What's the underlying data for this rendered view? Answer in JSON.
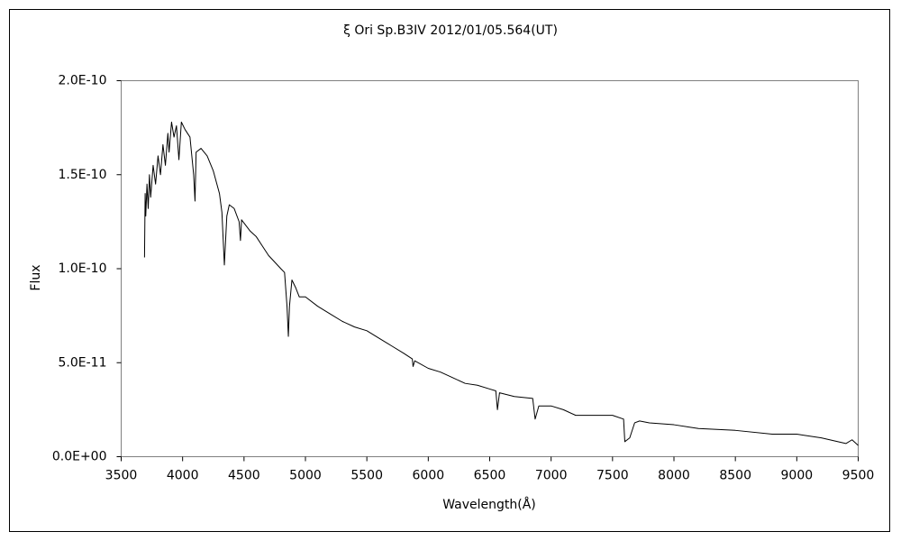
{
  "chart_data": {
    "type": "line",
    "title": "ξ Ori   Sp.B3IV   2012/01/05.564(UT)",
    "x_label": "Wavelength(Å)",
    "y_label": "Flux",
    "color": "#000000",
    "grid": false,
    "xlim": [
      3500,
      9500
    ],
    "xticks": [
      3500,
      4000,
      4500,
      5000,
      5500,
      6000,
      6500,
      7000,
      7500,
      8000,
      8500,
      9000,
      9500
    ],
    "ylim": [
      0,
      2e-10
    ],
    "yticks": [
      {
        "value": 0,
        "label": "0.0E+00"
      },
      {
        "value": 5e-11,
        "label": "5.0E-11"
      },
      {
        "value": 1e-10,
        "label": "1.0E-10"
      },
      {
        "value": 1.5e-10,
        "label": "1.5E-10"
      },
      {
        "value": 2e-10,
        "label": "2.0E-10"
      }
    ],
    "x": [
      3690,
      3695,
      3700,
      3710,
      3720,
      3730,
      3740,
      3760,
      3780,
      3800,
      3820,
      3840,
      3860,
      3880,
      3890,
      3910,
      3930,
      3950,
      3970,
      3990,
      4020,
      4060,
      4090,
      4101,
      4110,
      4150,
      4200,
      4250,
      4300,
      4320,
      4340,
      4360,
      4380,
      4420,
      4460,
      4471,
      4480,
      4550,
      4600,
      4650,
      4700,
      4800,
      4830,
      4850,
      4861,
      4870,
      4890,
      4920,
      4950,
      5000,
      5100,
      5200,
      5300,
      5400,
      5500,
      5600,
      5700,
      5800,
      5870,
      5876,
      5890,
      6000,
      6100,
      6200,
      6300,
      6400,
      6500,
      6550,
      6563,
      6580,
      6700,
      6850,
      6870,
      6900,
      7000,
      7100,
      7200,
      7300,
      7500,
      7590,
      7600,
      7640,
      7680,
      7720,
      7800,
      8000,
      8200,
      8500,
      8800,
      9000,
      9200,
      9400,
      9450,
      9500
    ],
    "values": [
      1.06e-10,
      1.4e-10,
      1.28e-10,
      1.45e-10,
      1.32e-10,
      1.5e-10,
      1.38e-10,
      1.55e-10,
      1.45e-10,
      1.6e-10,
      1.5e-10,
      1.66e-10,
      1.55e-10,
      1.72e-10,
      1.62e-10,
      1.78e-10,
      1.7e-10,
      1.76e-10,
      1.58e-10,
      1.78e-10,
      1.74e-10,
      1.7e-10,
      1.5e-10,
      1.36e-10,
      1.62e-10,
      1.64e-10,
      1.6e-10,
      1.52e-10,
      1.4e-10,
      1.3e-10,
      1.02e-10,
      1.28e-10,
      1.34e-10,
      1.32e-10,
      1.25e-10,
      1.15e-10,
      1.26e-10,
      1.2e-10,
      1.17e-10,
      1.12e-10,
      1.07e-10,
      1e-10,
      9.8e-11,
      8e-11,
      6.4e-11,
      8e-11,
      9.4e-11,
      9e-11,
      8.5e-11,
      8.5e-11,
      8e-11,
      7.6e-11,
      7.2e-11,
      6.9e-11,
      6.7e-11,
      6.3e-11,
      5.9e-11,
      5.5e-11,
      5.2e-11,
      4.8e-11,
      5.1e-11,
      4.7e-11,
      4.5e-11,
      4.2e-11,
      3.9e-11,
      3.8e-11,
      3.6e-11,
      3.5e-11,
      2.5e-11,
      3.4e-11,
      3.2e-11,
      3.1e-11,
      2e-11,
      2.7e-11,
      2.7e-11,
      2.5e-11,
      2.2e-11,
      2.2e-11,
      2.2e-11,
      2e-11,
      8e-12,
      1e-11,
      1.8e-11,
      1.9e-11,
      1.8e-11,
      1.7e-11,
      1.5e-11,
      1.4e-11,
      1.2e-11,
      1.2e-11,
      1e-11,
      7e-12,
      9e-12,
      6e-12
    ]
  }
}
